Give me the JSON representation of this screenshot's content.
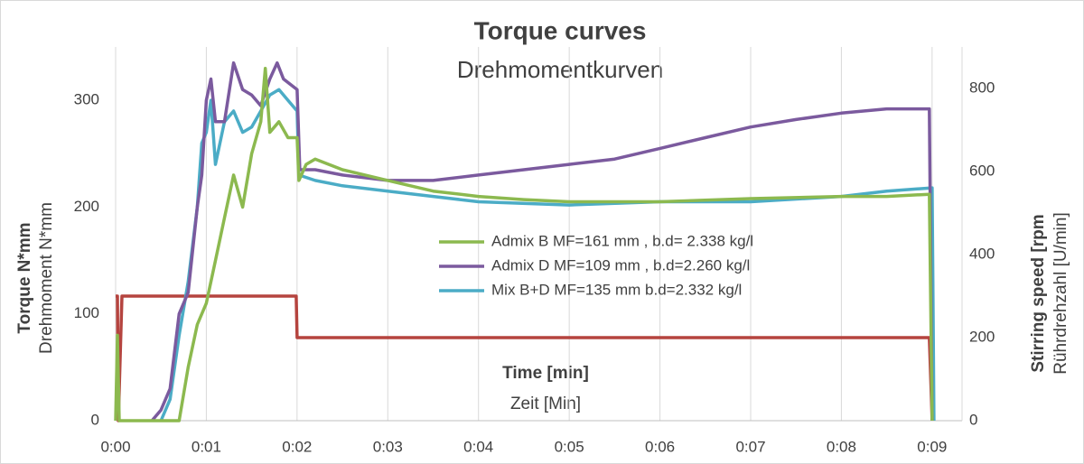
{
  "chart_data": {
    "type": "line",
    "title": "Torque curves",
    "subtitle": "Drehmomentkurven",
    "y_label": "Torque N*mm",
    "y_label_sub": "Drehmoment N*mm",
    "y2_label": "Stirring speed [rpm",
    "y2_label_sub": "Rührdrehzahl [U/min]",
    "x_label": "Time [min]",
    "x_label_sub": "Zeit [Min]",
    "xlim": [
      0,
      9.33
    ],
    "xticks": [
      {
        "value": 0,
        "label": "0:00"
      },
      {
        "value": 1,
        "label": "0:01"
      },
      {
        "value": 2,
        "label": "0:02"
      },
      {
        "value": 3,
        "label": "0:03"
      },
      {
        "value": 4,
        "label": "0:04"
      },
      {
        "value": 5,
        "label": "0:05"
      },
      {
        "value": 6,
        "label": "0:06"
      },
      {
        "value": 7,
        "label": "0:07"
      },
      {
        "value": 8,
        "label": "0:08"
      },
      {
        "value": 9,
        "label": "0:09"
      }
    ],
    "ylim": [
      0,
      350
    ],
    "yticks": [
      0,
      100,
      200,
      300
    ],
    "y2lim": [
      0,
      900
    ],
    "y2ticks": [
      0,
      200,
      400,
      600,
      800
    ],
    "grid": "x",
    "series": [
      {
        "name": "Admix B MF=161 mm , b.d= 2.338 kg/l",
        "color": "#8cb94f",
        "x": [
          0,
          0.02,
          0.04,
          0.7,
          0.8,
          0.9,
          1.0,
          1.1,
          1.2,
          1.3,
          1.4,
          1.5,
          1.6,
          1.65,
          1.7,
          1.8,
          1.9,
          2.0,
          2.02,
          2.1,
          2.2,
          2.5,
          3.0,
          3.5,
          4.0,
          4.5,
          5.0,
          6.0,
          7.0,
          8.0,
          8.5,
          8.97,
          9.0
        ],
        "values": [
          0,
          80,
          0,
          0,
          50,
          90,
          110,
          150,
          190,
          230,
          200,
          250,
          280,
          330,
          270,
          280,
          265,
          265,
          225,
          240,
          245,
          235,
          225,
          215,
          210,
          207,
          205,
          205,
          208,
          210,
          210,
          212,
          0
        ]
      },
      {
        "name": "Admix D MF=109 mm , b.d=2.260 kg/l",
        "color": "#7b5a9e",
        "x": [
          0.4,
          0.5,
          0.6,
          0.7,
          0.8,
          0.9,
          0.95,
          1.0,
          1.05,
          1.1,
          1.2,
          1.3,
          1.4,
          1.5,
          1.6,
          1.7,
          1.78,
          1.85,
          2.0,
          2.03,
          2.2,
          2.5,
          3.0,
          3.5,
          4.0,
          4.5,
          5.0,
          5.5,
          6.0,
          6.5,
          7.0,
          7.5,
          8.0,
          8.5,
          8.97,
          9.0
        ],
        "values": [
          0,
          10,
          30,
          100,
          120,
          200,
          230,
          300,
          320,
          280,
          280,
          335,
          310,
          305,
          295,
          320,
          335,
          320,
          310,
          235,
          235,
          230,
          225,
          225,
          230,
          235,
          240,
          245,
          255,
          265,
          275,
          282,
          288,
          292,
          292,
          0
        ]
      },
      {
        "name": "Mix B+D MF=135 mm b.d=2.332  kg/l",
        "color": "#4bacc6",
        "x": [
          0.5,
          0.6,
          0.7,
          0.8,
          0.9,
          0.95,
          1.0,
          1.05,
          1.1,
          1.2,
          1.3,
          1.4,
          1.5,
          1.6,
          1.7,
          1.8,
          1.9,
          2.0,
          2.02,
          2.2,
          2.5,
          3.0,
          3.5,
          4.0,
          5.0,
          6.0,
          7.0,
          8.0,
          8.5,
          9.0,
          9.02
        ],
        "values": [
          0,
          20,
          80,
          130,
          200,
          260,
          270,
          300,
          240,
          280,
          290,
          270,
          275,
          290,
          305,
          310,
          300,
          290,
          230,
          225,
          220,
          215,
          210,
          205,
          202,
          205,
          205,
          210,
          215,
          218,
          0
        ]
      },
      {
        "color": "#b5443f",
        "axis": "y2",
        "x": [
          0,
          0.02,
          0.03,
          0.07,
          1.99,
          2.0,
          8.97,
          9.0
        ],
        "values": [
          300,
          300,
          0,
          300,
          300,
          200,
          200,
          0
        ]
      }
    ]
  }
}
